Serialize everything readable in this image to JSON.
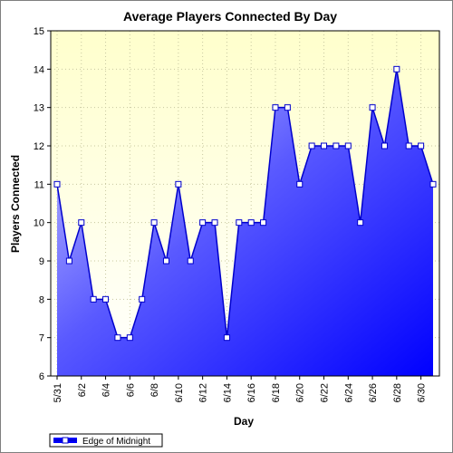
{
  "chart_data": {
    "type": "area",
    "title": "Average Players Connected By Day",
    "xlabel": "Day",
    "ylabel": "Players Connected",
    "ylim": [
      6,
      15
    ],
    "yticks": [
      6,
      7,
      8,
      9,
      10,
      11,
      12,
      13,
      14,
      15
    ],
    "x": [
      "5/31",
      "6/1",
      "6/2",
      "6/3",
      "6/4",
      "6/5",
      "6/6",
      "6/7",
      "6/8",
      "6/9",
      "6/10",
      "6/11",
      "6/12",
      "6/13",
      "6/14",
      "6/15",
      "6/16",
      "6/17",
      "6/18",
      "6/19",
      "6/20",
      "6/21",
      "6/22",
      "6/23",
      "6/24",
      "6/25",
      "6/26",
      "6/27",
      "6/28",
      "6/29",
      "6/30",
      "7/1"
    ],
    "x_tick_labels": [
      "5/31",
      "6/2",
      "6/4",
      "6/6",
      "6/8",
      "6/10",
      "6/12",
      "6/14",
      "6/16",
      "6/18",
      "6/20",
      "6/22",
      "6/24",
      "6/26",
      "6/28",
      "6/30"
    ],
    "series": [
      {
        "name": "Edge of Midnight",
        "values": [
          11,
          9,
          10,
          8,
          8,
          7,
          7,
          8,
          10,
          9,
          11,
          9,
          10,
          10,
          7,
          10,
          10,
          10,
          13,
          13,
          11,
          12,
          12,
          12,
          12,
          10,
          13,
          12,
          14,
          12,
          12,
          11
        ]
      }
    ],
    "grid": true,
    "legend_position": "bottom-left",
    "colors": {
      "line": "#0000cc",
      "fill_light": "#c8c8ff",
      "fill_dark": "#0000ff",
      "plot_bg_top": "#ffffcc",
      "plot_bg_bottom": "#ffffff",
      "marker_fill": "#ffffff",
      "grid": "#c8c8a0"
    }
  }
}
